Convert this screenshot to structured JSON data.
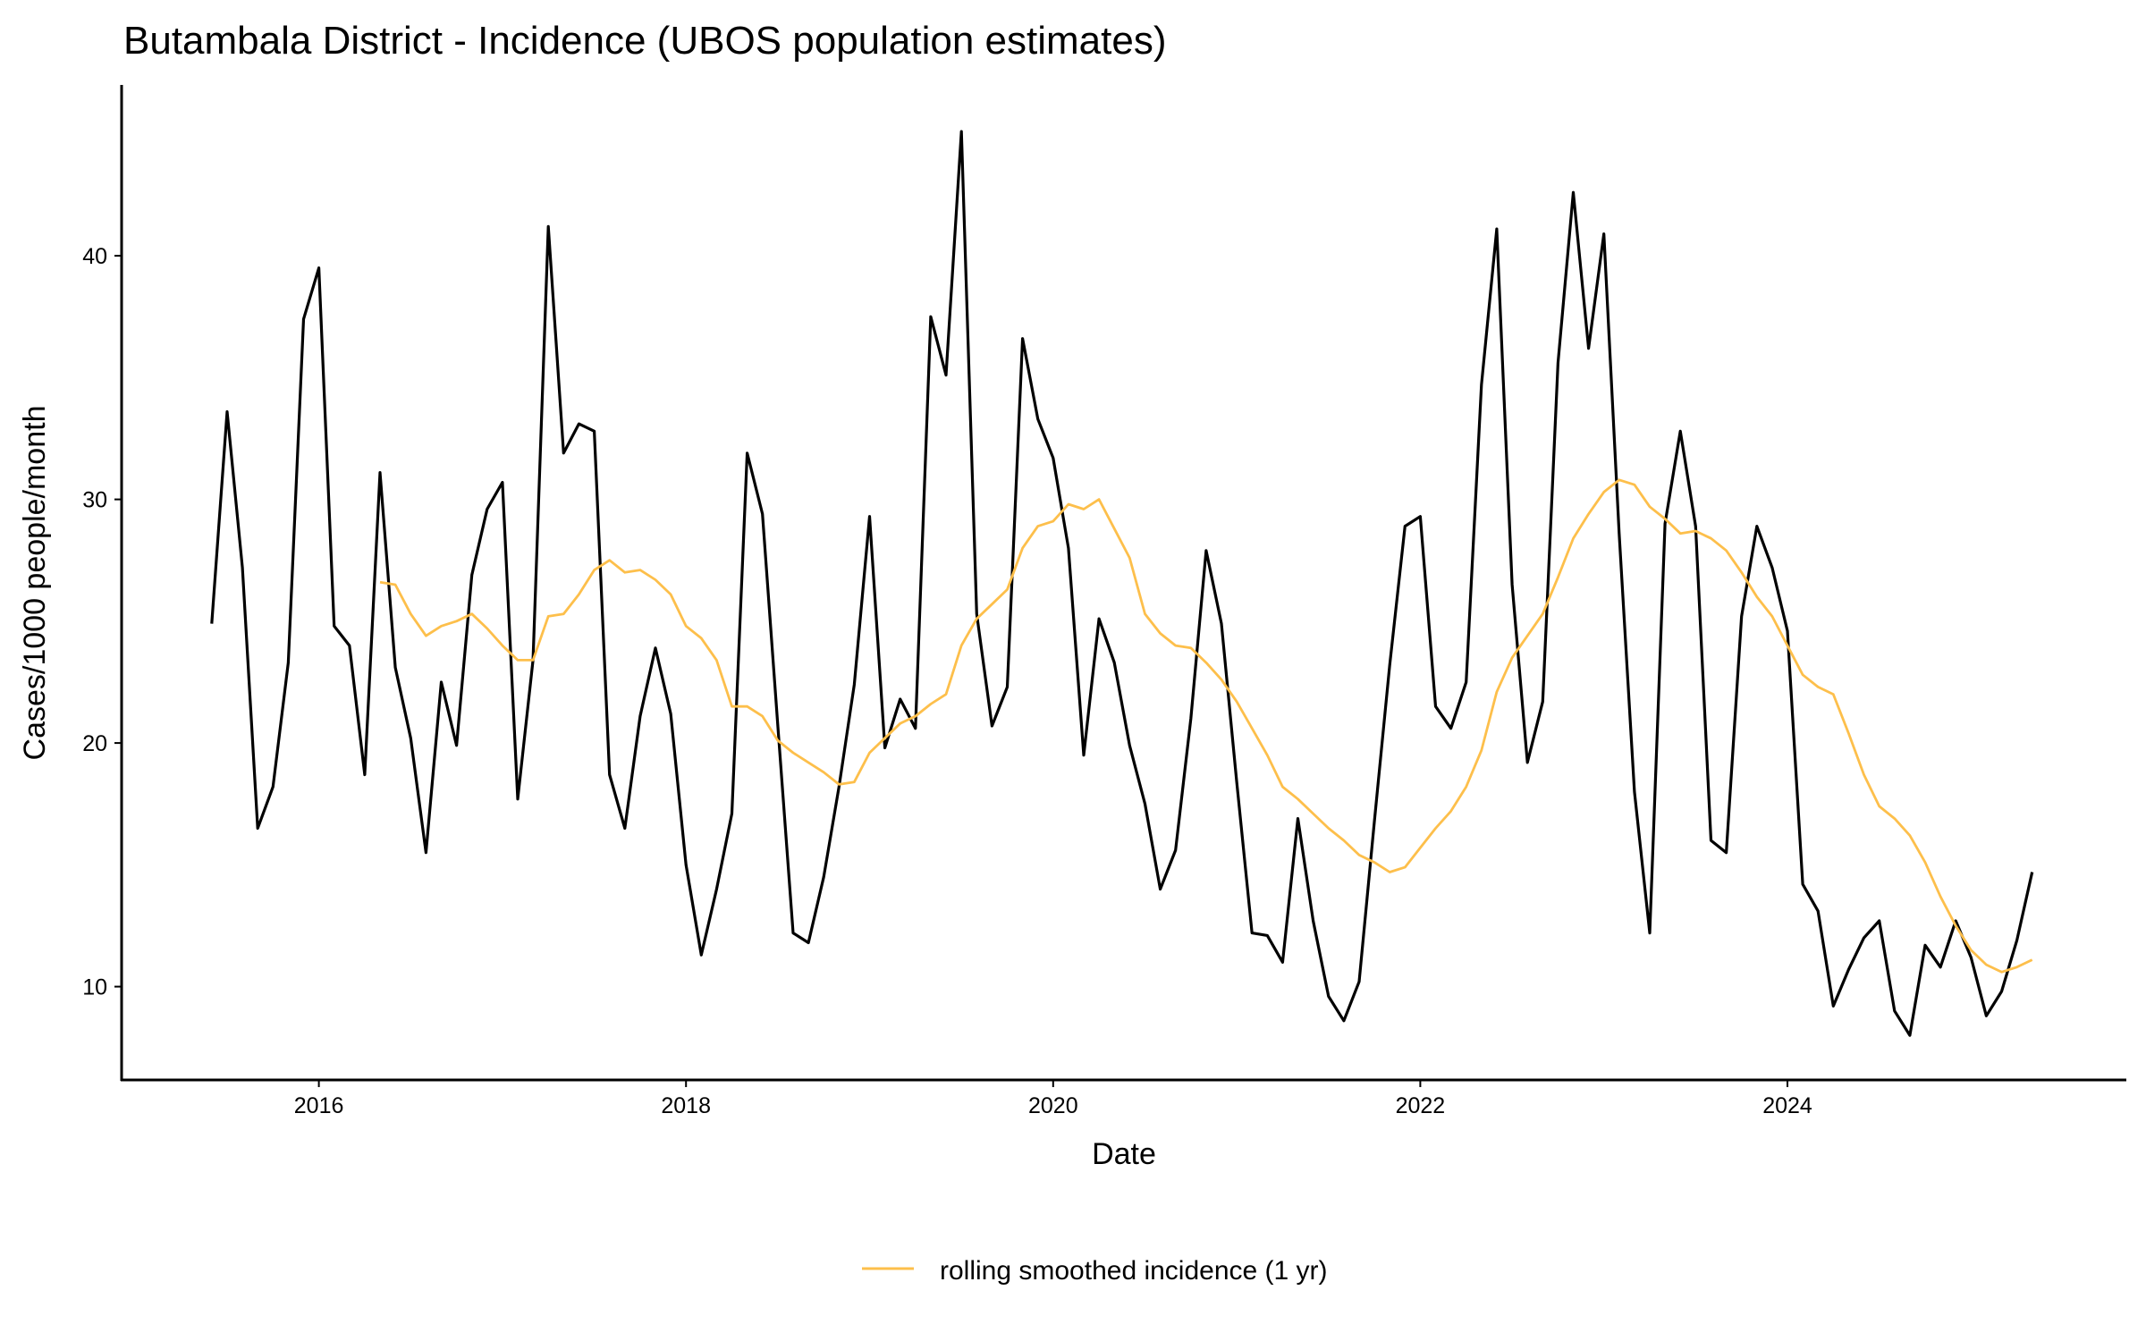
{
  "chart_data": {
    "type": "line",
    "title": "Butambala District - Incidence (UBOS population estimates)",
    "xlabel": "Date",
    "ylabel": "Cases/1000 people/month",
    "x_start": "2015-06",
    "x_step": "1 month",
    "xlim": [
      2014.9,
      2025.8
    ],
    "ylim": [
      6.3,
      47
    ],
    "x_ticks": [
      2016,
      2018,
      2020,
      2022,
      2024
    ],
    "x_tick_labels": [
      "2016",
      "2018",
      "2020",
      "2022",
      "2024"
    ],
    "y_ticks": [
      10,
      20,
      30,
      40
    ],
    "y_tick_labels": [
      "10",
      "20",
      "30",
      "40"
    ],
    "grid": false,
    "legend_position": "bottom",
    "series": [
      {
        "name": "incidence",
        "color": "#000000",
        "in_legend": false,
        "values": [
          24.9,
          33.6,
          27.2,
          16.5,
          18.2,
          23.3,
          37.4,
          39.5,
          24.8,
          24.0,
          18.7,
          31.1,
          23.1,
          20.2,
          15.5,
          22.5,
          19.9,
          26.9,
          29.6,
          30.7,
          17.7,
          23.4,
          41.2,
          31.9,
          33.1,
          32.8,
          18.7,
          16.5,
          21.1,
          23.9,
          21.2,
          15.0,
          11.3,
          14.0,
          17.1,
          31.9,
          29.4,
          20.7,
          12.2,
          11.8,
          14.5,
          18.2,
          22.4,
          29.3,
          19.8,
          21.8,
          20.6,
          37.5,
          35.1,
          45.1,
          25.3,
          20.7,
          22.3,
          36.6,
          33.3,
          31.7,
          28.0,
          19.5,
          25.1,
          23.3,
          19.9,
          17.5,
          14.0,
          15.6,
          21.0,
          27.9,
          24.9,
          18.4,
          12.2,
          12.1,
          11.0,
          16.9,
          12.7,
          9.6,
          8.6,
          10.2,
          16.8,
          23.2,
          28.9,
          29.3,
          21.5,
          20.6,
          22.5,
          34.7,
          41.1,
          26.5,
          19.2,
          21.7,
          35.6,
          42.6,
          36.2,
          40.9,
          28.6,
          18.0,
          12.2,
          29.0,
          32.8,
          28.9,
          16.0,
          15.5,
          25.2,
          28.9,
          27.2,
          24.6,
          14.2,
          13.1,
          9.2,
          10.7,
          12.0,
          12.7,
          9.0,
          8.0,
          11.7,
          10.8,
          12.7,
          11.2,
          8.8,
          9.8,
          11.9,
          14.7
        ]
      },
      {
        "name": "rolling smoothed incidence (1 yr)",
        "color": "#FDBF4B",
        "in_legend": true,
        "values": [
          null,
          null,
          null,
          null,
          null,
          null,
          null,
          null,
          null,
          null,
          null,
          26.6,
          26.5,
          25.3,
          24.4,
          24.8,
          25.0,
          25.3,
          24.7,
          24.0,
          23.4,
          23.4,
          25.2,
          25.3,
          26.1,
          27.1,
          27.5,
          27.0,
          27.1,
          26.7,
          26.1,
          24.8,
          24.3,
          23.4,
          21.5,
          21.5,
          21.1,
          20.1,
          19.6,
          19.2,
          18.8,
          18.3,
          18.4,
          19.6,
          20.2,
          20.8,
          21.1,
          21.6,
          22.0,
          24.0,
          25.1,
          25.7,
          26.3,
          28.0,
          28.9,
          29.1,
          29.8,
          29.6,
          30.0,
          28.8,
          27.6,
          25.3,
          24.5,
          24.0,
          23.9,
          23.3,
          22.6,
          21.7,
          20.6,
          19.5,
          18.2,
          17.7,
          17.1,
          16.5,
          16.0,
          15.4,
          15.1,
          14.7,
          14.9,
          15.7,
          16.5,
          17.2,
          18.2,
          19.7,
          22.1,
          23.5,
          24.4,
          25.3,
          26.8,
          28.4,
          29.4,
          30.3,
          30.8,
          30.6,
          29.7,
          29.2,
          28.6,
          28.7,
          28.4,
          27.9,
          27.0,
          26.0,
          25.2,
          24.0,
          22.8,
          22.3,
          22.0,
          20.4,
          18.7,
          17.4,
          16.9,
          16.2,
          15.1,
          13.7,
          12.5,
          11.5,
          10.9,
          10.6,
          10.8,
          11.1
        ]
      }
    ]
  }
}
